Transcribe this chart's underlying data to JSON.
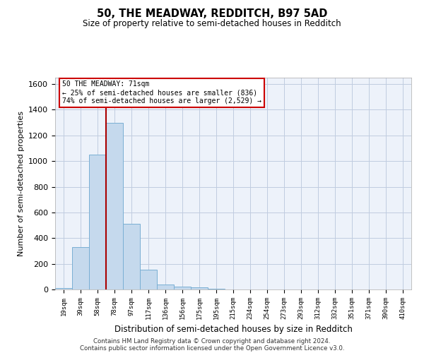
{
  "title1": "50, THE MEADWAY, REDDITCH, B97 5AD",
  "title2": "Size of property relative to semi-detached houses in Redditch",
  "xlabel": "Distribution of semi-detached houses by size in Redditch",
  "ylabel": "Number of semi-detached properties",
  "categories": [
    "19sqm",
    "39sqm",
    "58sqm",
    "78sqm",
    "97sqm",
    "117sqm",
    "136sqm",
    "156sqm",
    "175sqm",
    "195sqm",
    "215sqm",
    "234sqm",
    "254sqm",
    "273sqm",
    "293sqm",
    "312sqm",
    "332sqm",
    "351sqm",
    "371sqm",
    "390sqm",
    "410sqm"
  ],
  "values": [
    10,
    330,
    1050,
    1300,
    510,
    155,
    40,
    22,
    18,
    8,
    0,
    0,
    0,
    0,
    0,
    0,
    0,
    0,
    0,
    0,
    0
  ],
  "bar_color": "#c5d9ed",
  "bar_edge_color": "#7aafd4",
  "vline_color": "#aa0000",
  "annotation_box_text": "50 THE MEADWAY: 71sqm\n← 25% of semi-detached houses are smaller (836)\n74% of semi-detached houses are larger (2,529) →",
  "annotation_box_color": "#cc0000",
  "ylim": [
    0,
    1650
  ],
  "yticks": [
    0,
    200,
    400,
    600,
    800,
    1000,
    1200,
    1400,
    1600
  ],
  "footer1": "Contains HM Land Registry data © Crown copyright and database right 2024.",
  "footer2": "Contains public sector information licensed under the Open Government Licence v3.0.",
  "bg_color": "#edf2fa",
  "grid_color": "#c0cce0"
}
